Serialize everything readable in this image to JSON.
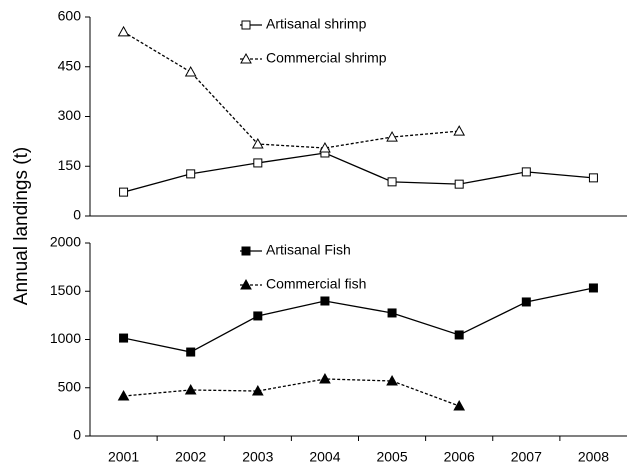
{
  "chart_data": [
    {
      "type": "line",
      "ylabel": "Annual landings (t)",
      "ylim": [
        0,
        600
      ],
      "yticks": [
        0,
        150,
        300,
        450,
        600
      ],
      "legend": "top-center",
      "series": [
        {
          "name": "Artisanal shrimp",
          "color": "#000000",
          "marker": "square",
          "marker_fill": "#ffffff",
          "dashed": false,
          "values": [
            72,
            127,
            160,
            190,
            103,
            96,
            133,
            115
          ]
        },
        {
          "name": "Commercial shrimp",
          "color": "#000000",
          "marker": "triangle",
          "marker_fill": "#ffffff",
          "dashed": true,
          "values": [
            555,
            434,
            217,
            205,
            238,
            256,
            null,
            null
          ]
        }
      ]
    },
    {
      "type": "line",
      "categories": [
        "2001",
        "2002",
        "2003",
        "2004",
        "2005",
        "2006",
        "2007",
        "2008"
      ],
      "ylim": [
        0,
        2000
      ],
      "yticks": [
        0,
        500,
        1000,
        1500,
        2000
      ],
      "legend": "top-center",
      "series": [
        {
          "name": "Artisanal Fish",
          "color": "#000000",
          "marker": "square",
          "marker_fill": "#000000",
          "dashed": false,
          "values": [
            1015,
            870,
            1244,
            1399,
            1275,
            1047,
            1389,
            1534
          ]
        },
        {
          "name": "Commercial fish",
          "color": "#000000",
          "marker": "triangle",
          "marker_fill": "#000000",
          "dashed": true,
          "values": [
            414,
            477,
            466,
            591,
            570,
            311,
            null,
            null
          ]
        }
      ]
    }
  ]
}
